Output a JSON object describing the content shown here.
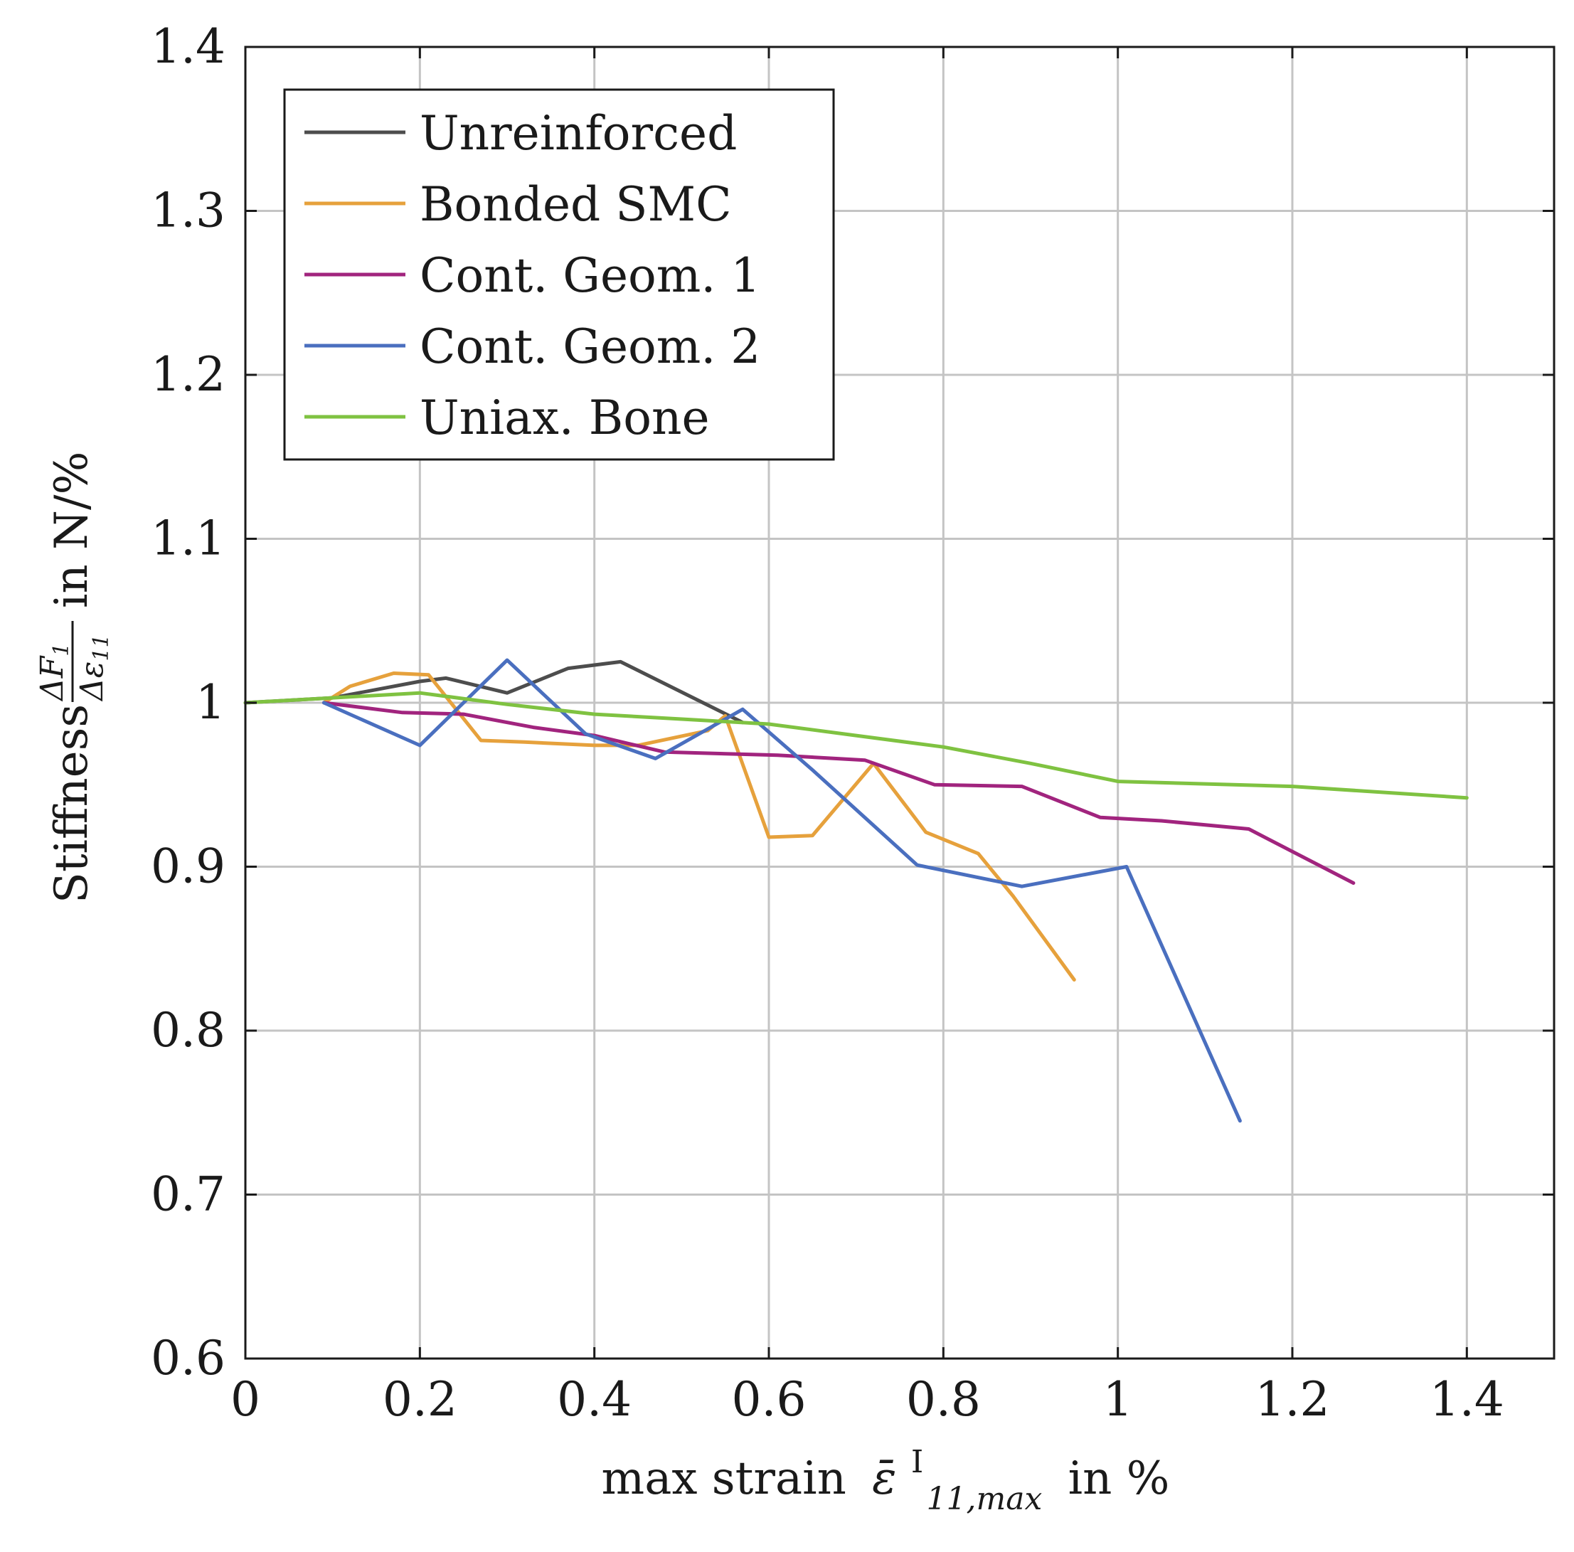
{
  "chart_data": {
    "type": "line",
    "title": "",
    "xlabel": {
      "prefix": "max strain",
      "symbol": "ε̄",
      "superscript": "I",
      "subscript": "11,max",
      "suffix": "in %"
    },
    "ylabel": {
      "prefix": "Stiffness",
      "numerator": "ΔF",
      "numerator_sub": "1",
      "denominator": "Δε",
      "denominator_sub": "11",
      "suffix": "in N/%"
    },
    "xlim": [
      0,
      1.5
    ],
    "ylim": [
      0.6,
      1.4
    ],
    "xticks": [
      0,
      0.2,
      0.4,
      0.6,
      0.8,
      1.0,
      1.2,
      1.4
    ],
    "xtick_labels": [
      "0",
      "0.2",
      "0.4",
      "0.6",
      "0.8",
      "1",
      "1.2",
      "1.4"
    ],
    "yticks": [
      0.6,
      0.7,
      0.8,
      0.9,
      1.0,
      1.1,
      1.2,
      1.3,
      1.4
    ],
    "ytick_labels": [
      "0.6",
      "0.7",
      "0.8",
      "0.9",
      "1",
      "1.1",
      "1.2",
      "1.3",
      "1.4"
    ],
    "grid": true,
    "legend_position": "top-left",
    "series": [
      {
        "name": "Unreinforced",
        "color": "#4d4d4d",
        "x": [
          0,
          0.1,
          0.2,
          0.23,
          0.3,
          0.37,
          0.43,
          0.57
        ],
        "y": [
          1.0,
          1.003,
          1.013,
          1.015,
          1.006,
          1.021,
          1.025,
          0.988
        ]
      },
      {
        "name": "Bonded SMC",
        "color": "#e6a13c",
        "x": [
          0.09,
          0.12,
          0.17,
          0.21,
          0.27,
          0.32,
          0.4,
          0.45,
          0.53,
          0.55,
          0.6,
          0.65,
          0.72,
          0.78,
          0.84,
          0.88,
          0.95
        ],
        "y": [
          1.0,
          1.01,
          1.018,
          1.017,
          0.977,
          0.976,
          0.974,
          0.974,
          0.983,
          0.992,
          0.918,
          0.919,
          0.963,
          0.921,
          0.908,
          0.882,
          0.831
        ]
      },
      {
        "name": "Cont. Geom. 1",
        "color": "#a1247e",
        "x": [
          0.09,
          0.18,
          0.25,
          0.33,
          0.4,
          0.48,
          0.61,
          0.71,
          0.79,
          0.89,
          0.98,
          1.05,
          1.15,
          1.27
        ],
        "y": [
          1.0,
          0.994,
          0.993,
          0.985,
          0.98,
          0.97,
          0.968,
          0.965,
          0.95,
          0.949,
          0.93,
          0.928,
          0.923,
          0.89
        ]
      },
      {
        "name": "Cont. Geom. 2",
        "color": "#4a6fbf",
        "x": [
          0.09,
          0.2,
          0.3,
          0.39,
          0.47,
          0.57,
          0.65,
          0.77,
          0.89,
          1.01,
          1.14
        ],
        "y": [
          1.0,
          0.974,
          1.026,
          0.981,
          0.966,
          0.996,
          0.959,
          0.901,
          0.888,
          0.9,
          0.745
        ]
      },
      {
        "name": "Uniax. Bone",
        "color": "#7fc241",
        "x": [
          0,
          0.1,
          0.2,
          0.3,
          0.4,
          0.5,
          0.6,
          0.7,
          0.8,
          0.9,
          1.0,
          1.2,
          1.4
        ],
        "y": [
          1.0,
          1.003,
          1.006,
          0.999,
          0.993,
          0.99,
          0.987,
          0.98,
          0.973,
          0.963,
          0.952,
          0.949,
          0.942
        ]
      }
    ]
  }
}
